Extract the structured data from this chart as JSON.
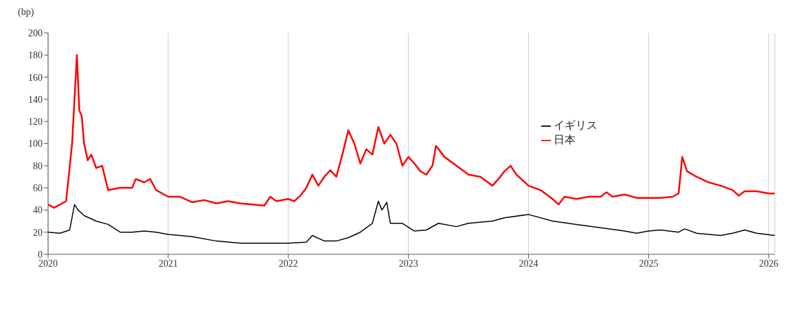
{
  "chart_data": {
    "type": "line",
    "ylabel": "(bp)",
    "xlim": [
      2020,
      2026.05
    ],
    "xticks": [
      2020,
      2021,
      2022,
      2023,
      2024,
      2025,
      2026
    ],
    "ylim": [
      0,
      200
    ],
    "yticks": [
      0,
      20,
      40,
      60,
      80,
      100,
      120,
      140,
      160,
      180,
      200
    ],
    "grid": "x",
    "legend": "right",
    "series": [
      {
        "name": "イギリス",
        "color": "#000000",
        "x": [
          2020,
          2020.1,
          2020.18,
          2020.22,
          2020.25,
          2020.3,
          2020.4,
          2020.5,
          2020.6,
          2020.7,
          2020.8,
          2020.9,
          2021,
          2021.2,
          2021.4,
          2021.6,
          2021.8,
          2022,
          2022.15,
          2022.2,
          2022.3,
          2022.4,
          2022.5,
          2022.6,
          2022.7,
          2022.75,
          2022.78,
          2022.82,
          2022.85,
          2022.95,
          2023.05,
          2023.15,
          2023.25,
          2023.4,
          2023.5,
          2023.7,
          2023.8,
          2024,
          2024.2,
          2024.4,
          2024.6,
          2024.8,
          2024.9,
          2025,
          2025.1,
          2025.25,
          2025.3,
          2025.4,
          2025.6,
          2025.7,
          2025.8,
          2025.9,
          2026.05
        ],
        "values": [
          20,
          19,
          22,
          45,
          40,
          35,
          30,
          27,
          20,
          20,
          21,
          20,
          18,
          16,
          12,
          10,
          10,
          10,
          11,
          17,
          12,
          12,
          15,
          20,
          28,
          48,
          40,
          47,
          28,
          28,
          21,
          22,
          28,
          25,
          28,
          30,
          33,
          36,
          30,
          27,
          24,
          21,
          19,
          21,
          22,
          20,
          23,
          19,
          17,
          19,
          22,
          19,
          17
        ]
      },
      {
        "name": "日本",
        "color": "#ff0000",
        "x": [
          2020,
          2020.05,
          2020.1,
          2020.15,
          2020.2,
          2020.22,
          2020.24,
          2020.26,
          2020.28,
          2020.3,
          2020.33,
          2020.36,
          2020.4,
          2020.45,
          2020.5,
          2020.6,
          2020.7,
          2020.73,
          2020.8,
          2020.85,
          2020.9,
          2021,
          2021.1,
          2021.2,
          2021.3,
          2021.4,
          2021.5,
          2021.6,
          2021.7,
          2021.8,
          2021.85,
          2021.9,
          2022,
          2022.05,
          2022.1,
          2022.15,
          2022.2,
          2022.25,
          2022.3,
          2022.35,
          2022.4,
          2022.45,
          2022.5,
          2022.55,
          2022.6,
          2022.65,
          2022.7,
          2022.75,
          2022.8,
          2022.85,
          2022.9,
          2022.95,
          2023,
          2023.05,
          2023.1,
          2023.15,
          2023.2,
          2023.23,
          2023.3,
          2023.4,
          2023.5,
          2023.6,
          2023.7,
          2023.75,
          2023.8,
          2023.85,
          2023.9,
          2024,
          2024.1,
          2024.2,
          2024.25,
          2024.3,
          2024.4,
          2024.5,
          2024.6,
          2024.65,
          2024.7,
          2024.8,
          2024.9,
          2025,
          2025.1,
          2025.2,
          2025.25,
          2025.28,
          2025.32,
          2025.4,
          2025.5,
          2025.6,
          2025.7,
          2025.75,
          2025.8,
          2025.9,
          2026,
          2026.05
        ],
        "values": [
          45,
          42,
          45,
          48,
          100,
          140,
          180,
          130,
          125,
          100,
          85,
          90,
          78,
          80,
          58,
          60,
          60,
          68,
          65,
          68,
          58,
          52,
          52,
          47,
          49,
          46,
          48,
          46,
          45,
          44,
          52,
          48,
          50,
          48,
          53,
          60,
          72,
          62,
          70,
          76,
          70,
          90,
          112,
          100,
          82,
          95,
          90,
          115,
          100,
          108,
          100,
          80,
          88,
          82,
          75,
          72,
          80,
          98,
          88,
          80,
          72,
          70,
          62,
          68,
          75,
          80,
          72,
          62,
          58,
          50,
          45,
          52,
          50,
          52,
          52,
          56,
          52,
          54,
          51,
          51,
          51,
          52,
          55,
          88,
          75,
          70,
          65,
          62,
          58,
          53,
          57,
          57,
          55,
          55
        ]
      }
    ]
  }
}
